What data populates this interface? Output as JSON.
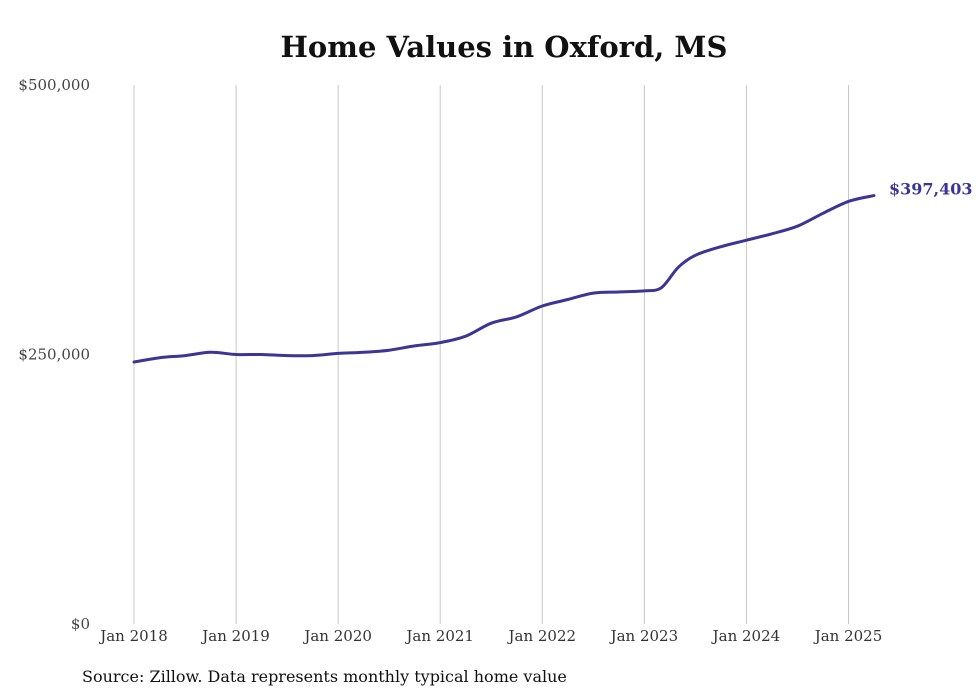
{
  "chart_data": {
    "type": "line",
    "title": "Home Values in Oxford, MS",
    "xlabel": "",
    "ylabel": "",
    "ylim": [
      0,
      500000
    ],
    "xlim": [
      "2018-01",
      "2025-04"
    ],
    "grid": "vertical",
    "color": "#3b3596",
    "y_ticks": [
      "$500,000",
      "$250,000",
      "$0"
    ],
    "x_ticks": [
      "Jan 2018",
      "Jan 2019",
      "Jan 2020",
      "Jan 2021",
      "Jan 2022",
      "Jan 2023",
      "Jan 2024",
      "Jan 2025"
    ],
    "end_label": "$397,403",
    "series": [
      {
        "x": [
          "2018-01",
          "2018-04",
          "2018-07",
          "2018-10",
          "2019-01",
          "2019-04",
          "2019-07",
          "2019-10",
          "2020-01",
          "2020-04",
          "2020-07",
          "2020-10",
          "2021-01",
          "2021-04",
          "2021-07",
          "2021-10",
          "2022-01",
          "2022-04",
          "2022-07",
          "2022-10",
          "2023-01",
          "2023-03",
          "2023-05",
          "2023-07",
          "2023-10",
          "2024-01",
          "2024-04",
          "2024-07",
          "2024-10",
          "2025-01",
          "2025-04"
        ],
        "y": [
          243000,
          247000,
          249000,
          252000,
          250000,
          250000,
          249000,
          249000,
          251000,
          252000,
          254000,
          258000,
          261000,
          267000,
          279000,
          285000,
          295000,
          301000,
          307000,
          308000,
          309000,
          312000,
          331000,
          342000,
          350000,
          356000,
          362000,
          369000,
          381000,
          392000,
          397403
        ]
      }
    ]
  },
  "source_note": "Source: Zillow. Data represents monthly typical home value"
}
